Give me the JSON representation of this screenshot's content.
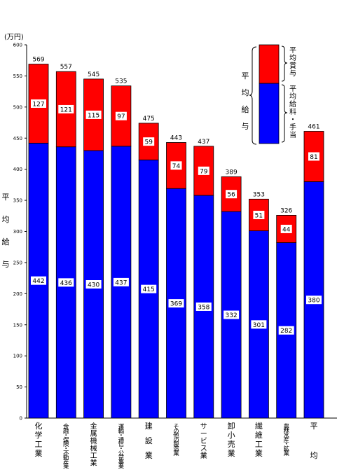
{
  "chart_data": {
    "type": "bar",
    "stacked": true,
    "unit_label": "(万円)",
    "ylabel": "平均給与",
    "ylim": [
      0,
      600
    ],
    "yticks": [
      0,
      50,
      100,
      150,
      200,
      250,
      300,
      350,
      400,
      450,
      500,
      550,
      600
    ],
    "categories": [
      "化学工業",
      "金融・保険・不動産業",
      "金属機械工業",
      "運輸・通信・公益事業",
      "建設業",
      "その他の製造業",
      "サービス業",
      "卸小売業",
      "繊維工業",
      "農林水産・鉱業",
      "平均"
    ],
    "series": [
      {
        "name": "平均給料・手当",
        "color": "#0000ff",
        "values": [
          442,
          436,
          430,
          437,
          415,
          369,
          358,
          332,
          301,
          282,
          380
        ]
      },
      {
        "name": "平均賞与",
        "color": "#ff0000",
        "values": [
          127,
          121,
          115,
          97,
          59,
          74,
          79,
          56,
          51,
          44,
          81
        ]
      }
    ],
    "totals": [
      569,
      557,
      545,
      535,
      475,
      443,
      437,
      389,
      353,
      326,
      461
    ],
    "legend_position": "top-right"
  }
}
